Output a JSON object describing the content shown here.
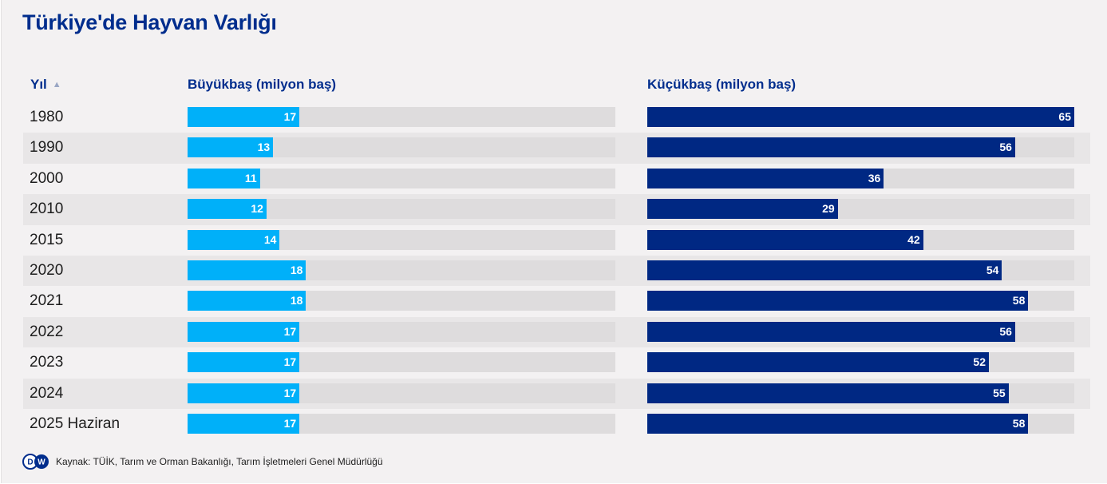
{
  "title": "Türkiye'de Hayvan Varlığı",
  "header": {
    "year_label": "Yıl",
    "sort_icon": "sort-ascending-icon",
    "left_label": "Büyükbaş (milyon baş)",
    "right_label": "Küçükbaş (milyon baş)"
  },
  "source": {
    "logo_text": "DW",
    "text": "Kaynak: TÜİK, Tarım ve Orman Bakanlığı, Tarım İşletmeleri Genel Müdürlüğü"
  },
  "colors": {
    "title": "#002d8d",
    "left_bar": "#00b0f9",
    "right_bar": "#002883",
    "track": "#dedcdd",
    "background": "#f3f1f2"
  },
  "chart_data": {
    "type": "bar",
    "orientation": "horizontal",
    "categories": [
      "1980",
      "1990",
      "2000",
      "2010",
      "2015",
      "2020",
      "2021",
      "2022",
      "2023",
      "2024",
      "2025 Haziran"
    ],
    "series": [
      {
        "name": "Büyükbaş (milyon baş)",
        "values": [
          17,
          13,
          11,
          12,
          14,
          18,
          18,
          17,
          17,
          17,
          17
        ],
        "axis_max": 65,
        "color": "#00b0f9"
      },
      {
        "name": "Küçükbaş (milyon baş)",
        "values": [
          65,
          56,
          36,
          29,
          42,
          54,
          58,
          56,
          52,
          55,
          58
        ],
        "axis_max": 65,
        "color": "#002883"
      }
    ],
    "data_labels": "inside-end",
    "legend": "none",
    "grid": false
  }
}
